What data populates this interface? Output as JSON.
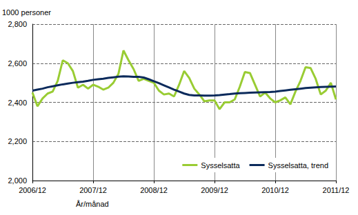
{
  "chart_data": {
    "type": "line",
    "y_label": "1000 personer",
    "x_label": "År/månad",
    "categories": [
      "2006/12",
      null,
      null,
      null,
      null,
      null,
      null,
      null,
      null,
      null,
      null,
      null,
      "2007/12",
      null,
      null,
      null,
      null,
      null,
      null,
      null,
      null,
      null,
      null,
      null,
      "2008/12",
      null,
      null,
      null,
      null,
      null,
      null,
      null,
      null,
      null,
      null,
      null,
      "2009/12",
      null,
      null,
      null,
      null,
      null,
      null,
      null,
      null,
      null,
      null,
      null,
      "2010/12",
      null,
      null,
      null,
      null,
      null,
      null,
      null,
      null,
      null,
      null,
      null,
      "2011/12"
    ],
    "series": [
      {
        "name": "Sysselsatta",
        "color": "#99cc33",
        "values": [
          2450,
          2380,
          2420,
          2445,
          2455,
          2510,
          2615,
          2600,
          2560,
          2475,
          2490,
          2470,
          2490,
          2480,
          2465,
          2475,
          2500,
          2545,
          2665,
          2615,
          2570,
          2510,
          2520,
          2510,
          2500,
          2460,
          2440,
          2445,
          2430,
          2490,
          2560,
          2525,
          2470,
          2440,
          2405,
          2410,
          2410,
          2365,
          2400,
          2400,
          2415,
          2480,
          2555,
          2550,
          2490,
          2430,
          2450,
          2420,
          2400,
          2410,
          2425,
          2390,
          2455,
          2510,
          2580,
          2575,
          2520,
          2440,
          2460,
          2500,
          2415
        ]
      },
      {
        "name": "Sysselsatta, trend",
        "color": "#0b2a5b",
        "values": [
          2460,
          2465,
          2470,
          2477,
          2482,
          2487,
          2492,
          2496,
          2500,
          2503,
          2506,
          2510,
          2515,
          2518,
          2521,
          2525,
          2528,
          2531,
          2533,
          2532,
          2530,
          2530,
          2527,
          2518,
          2508,
          2498,
          2487,
          2476,
          2465,
          2455,
          2445,
          2438,
          2435,
          2435,
          2434,
          2434,
          2435,
          2437,
          2440,
          2442,
          2445,
          2447,
          2448,
          2449,
          2450,
          2451,
          2452,
          2453,
          2455,
          2458,
          2461,
          2464,
          2467,
          2470,
          2473,
          2475,
          2477,
          2478,
          2479,
          2480,
          2481
        ]
      }
    ],
    "ylim": [
      2000,
      2800
    ],
    "yticks": [
      2000,
      2200,
      2400,
      2600,
      2800
    ],
    "grid": true,
    "legend": "lower right"
  }
}
